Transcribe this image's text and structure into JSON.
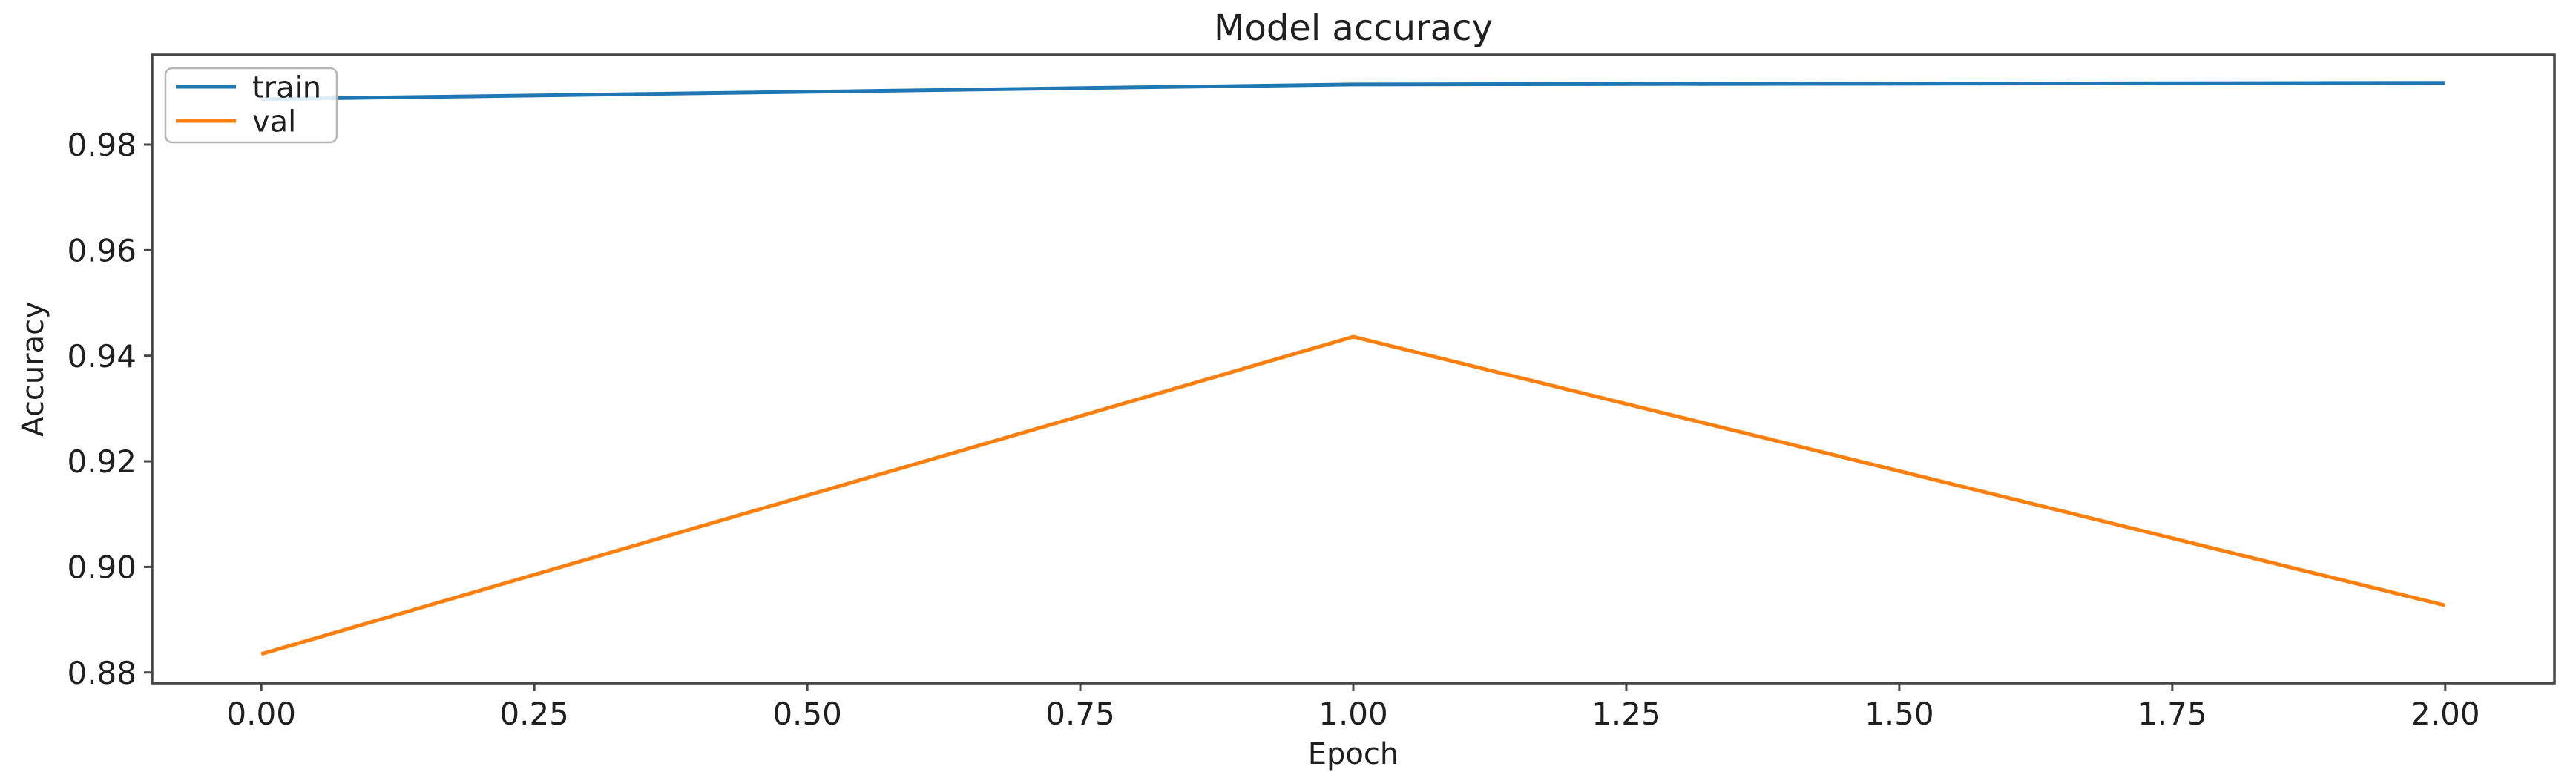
{
  "figure": {
    "title": "Model accuracy"
  },
  "chart_data": {
    "type": "line",
    "title": "Model accuracy",
    "xlabel": "Epoch",
    "ylabel": "Accuracy",
    "x": [
      0,
      1,
      2
    ],
    "series": [
      {
        "name": "train",
        "color": "#1f77b4",
        "values": [
          0.9886,
          0.9914,
          0.9917
        ]
      },
      {
        "name": "val",
        "color": "#ff7f0e",
        "values": [
          0.8835,
          0.9436,
          0.8927
        ]
      }
    ],
    "xlim": [
      -0.1,
      2.1
    ],
    "ylim": [
      0.878,
      0.997
    ],
    "x_tick_values": [
      0.0,
      0.25,
      0.5,
      0.75,
      1.0,
      1.25,
      1.5,
      1.75,
      2.0
    ],
    "x_tick_labels": [
      "0.00",
      "0.25",
      "0.50",
      "0.75",
      "1.00",
      "1.25",
      "1.50",
      "1.75",
      "2.00"
    ],
    "y_tick_values": [
      0.88,
      0.9,
      0.92,
      0.94,
      0.96,
      0.98
    ],
    "y_tick_labels": [
      "0.88",
      "0.90",
      "0.92",
      "0.94",
      "0.96",
      "0.98"
    ],
    "grid": false,
    "legend": {
      "position": "upper left",
      "entries": [
        "train",
        "val"
      ]
    },
    "colors": {
      "spine": "#454545",
      "tick": "#454545",
      "text": "#1f1f1f",
      "legend_border": "#b5b5b5",
      "legend_bg": "#ffffff"
    }
  }
}
